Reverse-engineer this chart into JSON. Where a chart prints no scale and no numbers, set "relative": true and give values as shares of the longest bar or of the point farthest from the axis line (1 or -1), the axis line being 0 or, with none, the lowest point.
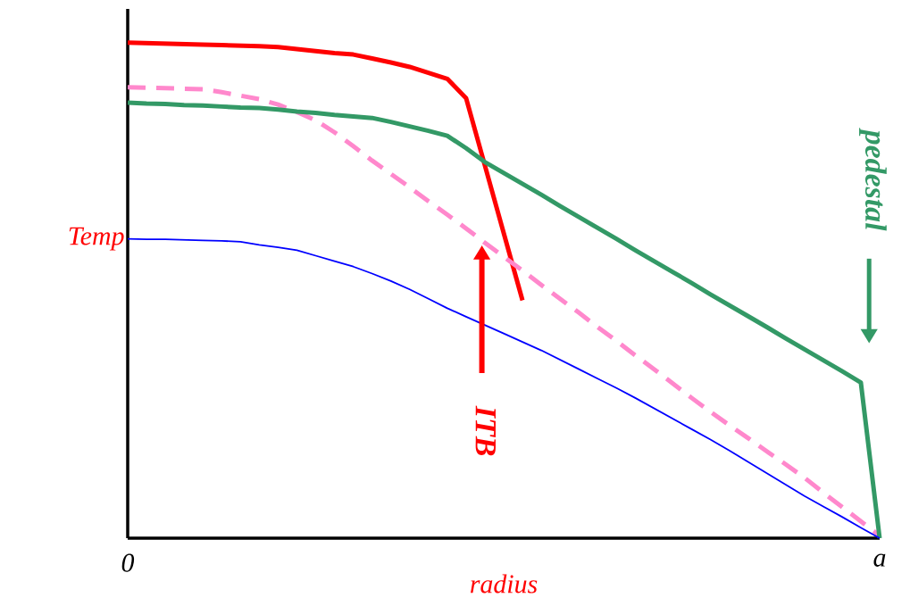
{
  "chart_data": {
    "type": "line",
    "relative": true,
    "xlabel": "radius",
    "ylabel": "Temp",
    "tick_labels": "x",
    "grid": false,
    "categories": [
      "0",
      null,
      null,
      null,
      null,
      null,
      null,
      null,
      null,
      null,
      null,
      null,
      null,
      null,
      null,
      null,
      null,
      null,
      null,
      null,
      null,
      null,
      null,
      null,
      null,
      null,
      null,
      null,
      null,
      null,
      null,
      null,
      null,
      null,
      null,
      null,
      null,
      null,
      null,
      null,
      "a"
    ],
    "series": [
      {
        "color": "#ff0000",
        "values": [
          1.0,
          0.999,
          0.998,
          0.997,
          0.996,
          0.995,
          0.994,
          0.993,
          0.991,
          0.987,
          0.983,
          0.979,
          0.976,
          0.968,
          0.96,
          0.951,
          0.939,
          0.927,
          0.888,
          0.752,
          0.616,
          0.48,
          null,
          null,
          null,
          null,
          null,
          null,
          null,
          null,
          null,
          null,
          null,
          null,
          null,
          null,
          null,
          null,
          null,
          null,
          null
        ]
      },
      {
        "color": "#ff88cc",
        "line_style": "dashed",
        "values": [
          0.91,
          0.909,
          0.908,
          0.907,
          0.906,
          0.9,
          0.893,
          0.886,
          0.875,
          0.86,
          0.843,
          0.819,
          0.791,
          0.762,
          0.735,
          0.708,
          0.68,
          0.653,
          0.625,
          0.596,
          0.568,
          0.54,
          0.511,
          0.483,
          0.455,
          0.426,
          0.398,
          0.369,
          0.341,
          0.312,
          0.283,
          0.255,
          0.228,
          0.202,
          0.175,
          0.149,
          0.122,
          0.092,
          0.063,
          0.034,
          0.005
        ]
      },
      {
        "color": "#339966",
        "values": [
          0.879,
          0.877,
          0.876,
          0.874,
          0.873,
          0.871,
          0.869,
          0.868,
          0.865,
          0.861,
          0.858,
          0.854,
          0.851,
          0.848,
          0.84,
          0.831,
          0.822,
          0.812,
          0.787,
          0.759,
          0.737,
          0.715,
          0.693,
          0.67,
          0.648,
          0.626,
          0.604,
          0.581,
          0.559,
          0.537,
          0.515,
          0.492,
          0.47,
          0.448,
          0.426,
          0.403,
          0.381,
          0.359,
          0.337,
          0.314,
          0.0
        ]
      },
      {
        "color": "#0000ff",
        "values": [
          0.604,
          0.603,
          0.603,
          0.602,
          0.601,
          0.6,
          0.598,
          0.592,
          0.587,
          0.581,
          0.57,
          0.559,
          0.548,
          0.534,
          0.519,
          0.502,
          0.483,
          0.464,
          0.447,
          0.43,
          0.413,
          0.396,
          0.379,
          0.36,
          0.341,
          0.322,
          0.303,
          0.283,
          0.262,
          0.241,
          0.22,
          0.199,
          0.177,
          0.154,
          0.131,
          0.108,
          0.085,
          0.064,
          0.043,
          0.021,
          0.0
        ]
      }
    ],
    "annotations": [
      "ITB",
      "pedestal"
    ]
  }
}
